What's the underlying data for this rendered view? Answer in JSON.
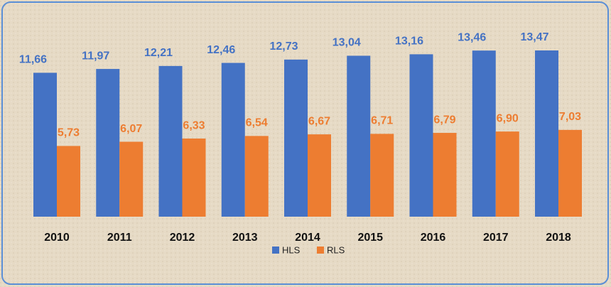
{
  "chart_data": {
    "type": "bar",
    "categories": [
      "2010",
      "2011",
      "2012",
      "2013",
      "2014",
      "2015",
      "2016",
      "2017",
      "2018"
    ],
    "series": [
      {
        "name": "HLS",
        "color": "#4472c4",
        "values": [
          11.66,
          11.97,
          12.21,
          12.46,
          12.73,
          13.04,
          13.16,
          13.46,
          13.47
        ],
        "value_labels": [
          "11,66",
          "11,97",
          "12,21",
          "12,46",
          "12,73",
          "13,04",
          "13,16",
          "13,46",
          "13,47"
        ]
      },
      {
        "name": "RLS",
        "color": "#ed7d31",
        "values": [
          5.73,
          6.07,
          6.33,
          6.54,
          6.67,
          6.71,
          6.79,
          6.9,
          7.03
        ],
        "value_labels": [
          "5,73",
          "6,07",
          "6,33",
          "6,54",
          "6,67",
          "6,71",
          "6,79",
          "6,90",
          "7,03"
        ]
      }
    ],
    "legend": "bottom"
  }
}
